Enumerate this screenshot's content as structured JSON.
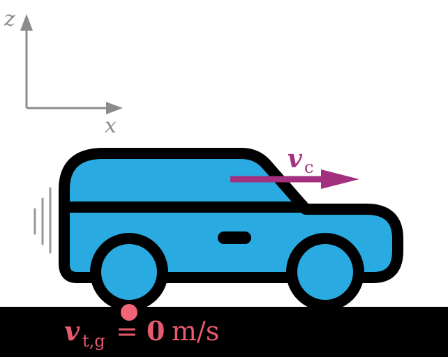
{
  "axes": {
    "z_label": "z",
    "x_label": "x",
    "color": "#8c8c8c"
  },
  "car_velocity": {
    "symbol": "v",
    "subscript": "c",
    "color": "#a3307f"
  },
  "contact_velocity": {
    "symbol": "v",
    "subscript": "t,g",
    "equals": "=",
    "value": "0",
    "unit": "m/s",
    "color": "#e65a6e"
  },
  "colors": {
    "car_body": "#29abe2",
    "outline": "#000000",
    "ground": "#000000",
    "motion_lines": "#999999",
    "contact_point": "#f06478"
  },
  "icons": {
    "car": "car-icon",
    "motion_lines": "motion-lines-icon",
    "contact_point": "contact-point-icon"
  }
}
